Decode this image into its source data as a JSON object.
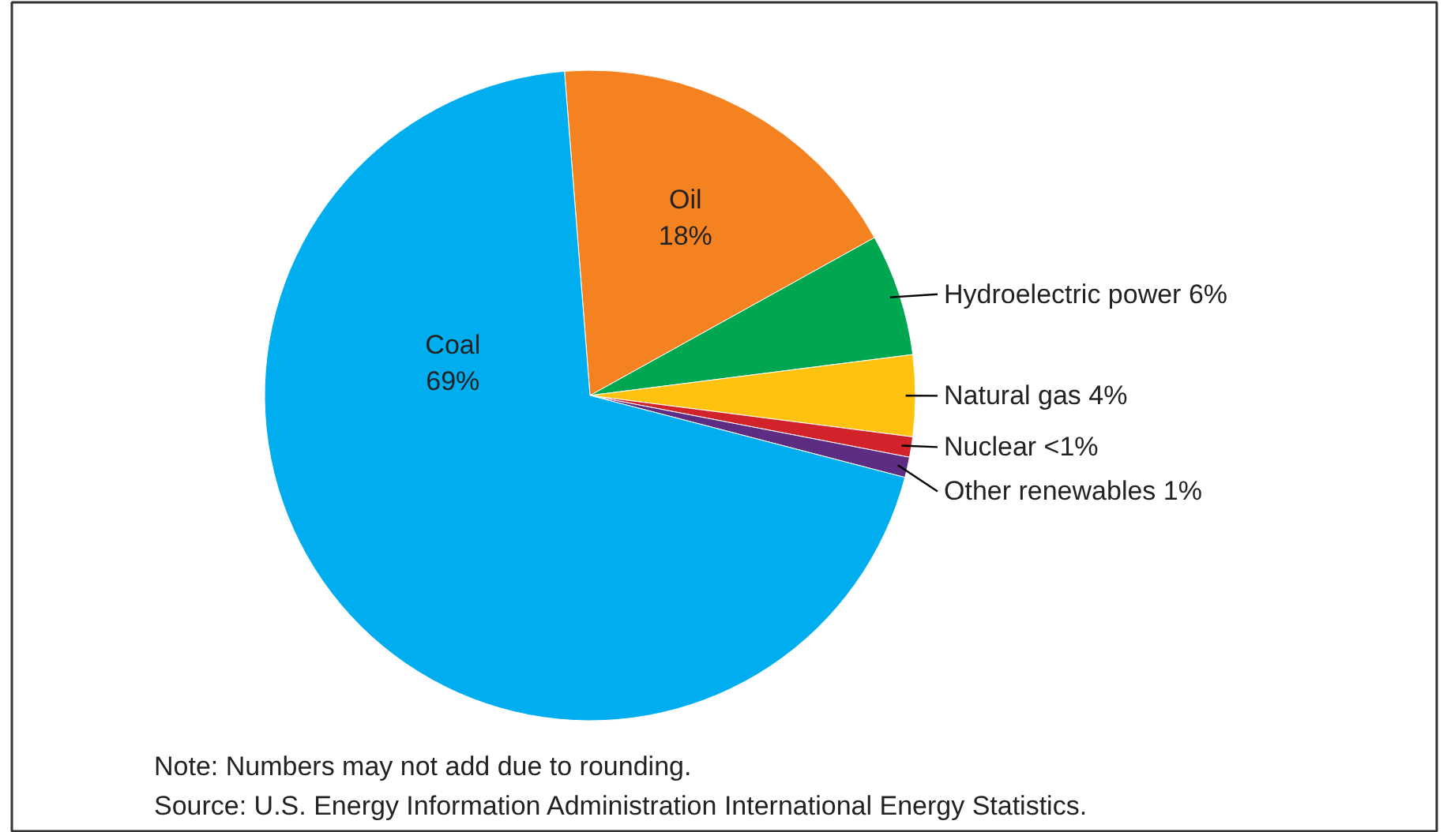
{
  "chart_data": {
    "type": "pie",
    "categories": [
      "Oil",
      "Hydroelectric power",
      "Natural gas",
      "Nuclear",
      "Other renewables",
      "Coal"
    ],
    "values": [
      18,
      6,
      4,
      1,
      1,
      69
    ],
    "value_labels": [
      "18%",
      "6%",
      "4%",
      "<1%",
      "1%",
      "69%"
    ],
    "colors": [
      "#f58220",
      "#00a650",
      "#ffc20e",
      "#d2232a",
      "#5c2d82",
      "#00aeef"
    ],
    "annotations": [
      "Note: Numbers may not add due to rounding.",
      "Source: U.S. Energy Information Administration International Energy Statistics."
    ]
  }
}
